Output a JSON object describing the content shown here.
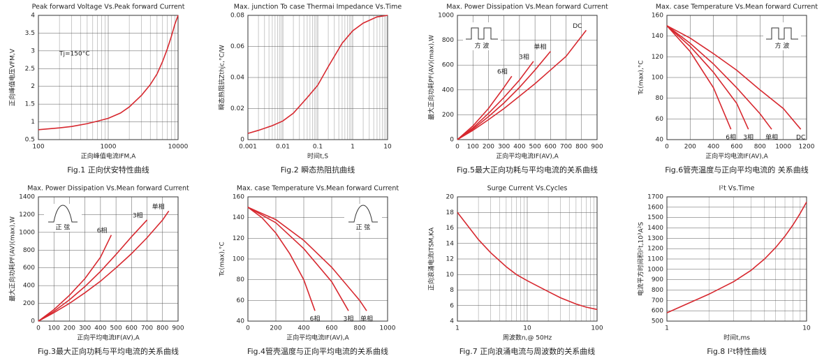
{
  "chart_data": [
    {
      "type": "line",
      "title": "Peak forward Voltage Vs.Peak forward Current",
      "caption": "Fig.1 正向伏安特性曲线",
      "xlabel": "正向峰值电流IFM,A",
      "ylabel": "正向峰值电压VFM,V",
      "annotation": "Tj=150°C",
      "xscale": "log",
      "xlim": [
        100,
        10000
      ],
      "xticks": [
        100,
        1000,
        10000
      ],
      "ylim": [
        0.5,
        4
      ],
      "yticks": [
        0.5,
        1,
        1.5,
        2,
        2.5,
        3,
        3.5,
        4
      ],
      "grid": true,
      "color": "#d7282f",
      "x": [
        100,
        200,
        300,
        500,
        700,
        1000,
        1500,
        2000,
        3000,
        4000,
        5000,
        6000,
        7000,
        8000,
        9000,
        10000
      ],
      "values": [
        0.78,
        0.83,
        0.87,
        0.95,
        1.02,
        1.1,
        1.25,
        1.42,
        1.75,
        2.05,
        2.35,
        2.7,
        3.05,
        3.4,
        3.75,
        4.0
      ]
    },
    {
      "type": "line",
      "title": "Max. junction To case Thermai Impedance Vs.Time",
      "caption": "Fig.2  瞬态热阻抗曲线",
      "xlabel": "时间t,S",
      "ylabel": "瞬态热阻抗Zthjc,°C/W",
      "xscale": "log",
      "xlim": [
        0.001,
        10
      ],
      "xticks": [
        0.001,
        0.01,
        0.1,
        1,
        10
      ],
      "ylim": [
        0,
        0.08
      ],
      "yticks": [
        0,
        0.02,
        0.04,
        0.06,
        0.08
      ],
      "grid": true,
      "color": "#d7282f",
      "x": [
        0.001,
        0.002,
        0.005,
        0.01,
        0.02,
        0.05,
        0.1,
        0.2,
        0.5,
        1,
        2,
        5,
        10
      ],
      "values": [
        0.004,
        0.006,
        0.009,
        0.012,
        0.017,
        0.027,
        0.035,
        0.047,
        0.062,
        0.07,
        0.075,
        0.079,
        0.08
      ]
    },
    {
      "type": "line",
      "title": "Max. Power Dissipation Vs.Mean forward Current",
      "caption": "Fig.5最大正向功耗与平均电流的关系曲线",
      "xlabel": "正向平均电流IF(AV),A",
      "ylabel": "最大正向功耗PF(AV)(max),W",
      "inset": {
        "label": "方  波",
        "shape": "square",
        "corner": "top-left"
      },
      "xscale": "linear",
      "xlim": [
        0,
        900
      ],
      "xticks": [
        0,
        100,
        200,
        300,
        400,
        500,
        600,
        700,
        800,
        900
      ],
      "ylim": [
        0,
        1000
      ],
      "yticks": [
        0,
        200,
        400,
        600,
        800,
        1000
      ],
      "grid": true,
      "series": [
        {
          "name": "6相",
          "color": "#d7282f",
          "x": [
            0,
            100,
            200,
            300,
            350
          ],
          "values": [
            0,
            110,
            250,
            420,
            510
          ]
        },
        {
          "name": "3相",
          "color": "#d7282f",
          "x": [
            0,
            100,
            200,
            300,
            400,
            490
          ],
          "values": [
            0,
            95,
            210,
            340,
            480,
            630
          ]
        },
        {
          "name": "单相",
          "color": "#d7282f",
          "x": [
            0,
            100,
            200,
            300,
            400,
            500,
            600
          ],
          "values": [
            0,
            85,
            185,
            295,
            420,
            560,
            710
          ]
        },
        {
          "name": "DC",
          "color": "#d7282f",
          "x": [
            0,
            100,
            200,
            300,
            400,
            500,
            600,
            700,
            830
          ],
          "values": [
            0,
            75,
            160,
            250,
            350,
            450,
            560,
            670,
            880
          ]
        }
      ]
    },
    {
      "type": "line",
      "title": "Max. case Temperature Vs.Mean forward Current",
      "caption": "Fig.6管壳温度与正向平均电流的 关系曲线",
      "xlabel": "正向平均电流IF(AV),A",
      "ylabel": "Tc(max),°C",
      "inset": {
        "label": "方  波",
        "shape": "square",
        "corner": "top-right"
      },
      "xscale": "linear",
      "xlim": [
        0,
        1200
      ],
      "xticks": [
        0,
        200,
        400,
        600,
        800,
        1000,
        1200
      ],
      "ylim": [
        40,
        160
      ],
      "yticks": [
        40,
        60,
        80,
        100,
        120,
        140,
        160
      ],
      "grid": true,
      "series": [
        {
          "name": "6相",
          "color": "#d7282f",
          "x": [
            0,
            200,
            400,
            550
          ],
          "values": [
            150,
            125,
            90,
            50
          ]
        },
        {
          "name": "3相",
          "color": "#d7282f",
          "x": [
            0,
            200,
            400,
            600,
            700
          ],
          "values": [
            150,
            130,
            105,
            75,
            50
          ]
        },
        {
          "name": "单相",
          "color": "#d7282f",
          "x": [
            0,
            200,
            400,
            600,
            800,
            900
          ],
          "values": [
            150,
            133,
            113,
            90,
            65,
            50
          ]
        },
        {
          "name": "DC",
          "color": "#d7282f",
          "x": [
            0,
            200,
            400,
            600,
            800,
            1000,
            1150
          ],
          "values": [
            150,
            138,
            123,
            107,
            88,
            70,
            50
          ]
        }
      ]
    },
    {
      "type": "line",
      "title": "Max. Power Dissipation Vs.Mean forward Current",
      "caption": "Fig.3最大正向功耗与平均电流的关系曲线",
      "xlabel": "正向平均电流IF(AV),A",
      "ylabel": "最大正向功耗PF(AV)(max),W",
      "inset": {
        "label": "正  弦",
        "shape": "sine",
        "corner": "top-left"
      },
      "xscale": "linear",
      "xlim": [
        0,
        900
      ],
      "xticks": [
        0,
        100,
        200,
        300,
        400,
        500,
        600,
        700,
        800,
        900
      ],
      "ylim": [
        0,
        1400
      ],
      "yticks": [
        0,
        200,
        400,
        600,
        800,
        1000,
        1200,
        1400
      ],
      "grid": true,
      "series": [
        {
          "name": "6相",
          "color": "#d7282f",
          "x": [
            0,
            100,
            200,
            300,
            400,
            470
          ],
          "values": [
            0,
            130,
            290,
            480,
            720,
            970
          ]
        },
        {
          "name": "3相",
          "color": "#d7282f",
          "x": [
            0,
            100,
            200,
            300,
            400,
            500,
            600,
            700
          ],
          "values": [
            0,
            110,
            240,
            390,
            560,
            750,
            950,
            1140
          ]
        },
        {
          "name": "单相",
          "color": "#d7282f",
          "x": [
            0,
            100,
            200,
            300,
            400,
            500,
            600,
            700,
            800,
            840
          ],
          "values": [
            0,
            95,
            200,
            320,
            450,
            600,
            760,
            940,
            1140,
            1240
          ]
        }
      ]
    },
    {
      "type": "line",
      "title": "Max. case Temperature Vs.Mean forward Current",
      "caption": "Fig.4管壳温度与正向平均电流的关系曲线",
      "xlabel": "正向平均电流IF(AV),A",
      "ylabel": "Tc(max),°C",
      "inset": {
        "label": "正  弦",
        "shape": "sine",
        "corner": "top-right"
      },
      "xscale": "linear",
      "xlim": [
        0,
        1000
      ],
      "xticks": [
        0,
        200,
        400,
        600,
        800,
        1000
      ],
      "ylim": [
        40,
        160
      ],
      "yticks": [
        40,
        60,
        80,
        100,
        120,
        140,
        160
      ],
      "grid": true,
      "series": [
        {
          "name": "6相",
          "color": "#d7282f",
          "x": [
            0,
            100,
            200,
            300,
            400,
            480
          ],
          "values": [
            150,
            140,
            125,
            105,
            80,
            50
          ]
        },
        {
          "name": "3相",
          "color": "#d7282f",
          "x": [
            0,
            200,
            400,
            600,
            720
          ],
          "values": [
            150,
            135,
            110,
            78,
            50
          ]
        },
        {
          "name": "单相",
          "color": "#d7282f",
          "x": [
            0,
            200,
            400,
            600,
            800,
            850
          ],
          "values": [
            150,
            138,
            118,
            92,
            60,
            50
          ]
        }
      ]
    },
    {
      "type": "line",
      "title": "Surge Current Vs.Cycles",
      "caption": "Fig.7 正向浪涌电流与周波数的关系曲线",
      "xlabel": "周波数n,@ 50Hz",
      "ylabel": "正向浪涌电流ITSM,KA",
      "xscale": "log",
      "xlim": [
        1,
        100
      ],
      "xticks": [
        1,
        10,
        100
      ],
      "ylim": [
        4,
        20
      ],
      "yticks": [
        4,
        6,
        8,
        10,
        12,
        14,
        16,
        18,
        20
      ],
      "grid": true,
      "color": "#d7282f",
      "x": [
        1,
        2,
        3,
        5,
        7,
        10,
        20,
        30,
        50,
        70,
        100
      ],
      "values": [
        18,
        14.5,
        12.8,
        11,
        10,
        9.2,
        7.8,
        7,
        6.2,
        5.8,
        5.5
      ]
    },
    {
      "type": "line",
      "title": "I²t Vs.Time",
      "caption": "Fig.8 I²t特性曲线",
      "xlabel": "时间t,ms",
      "ylabel": "电流平方时间积I²t,10³A²S",
      "xscale": "log",
      "xlim": [
        1,
        10
      ],
      "xticks": [
        1,
        10
      ],
      "ylim": [
        500,
        1700
      ],
      "yticks": [
        500,
        600,
        700,
        800,
        900,
        1000,
        1100,
        1200,
        1300,
        1400,
        1500,
        1600,
        1700
      ],
      "grid": true,
      "color": "#d7282f",
      "x": [
        1,
        2,
        3,
        4,
        5,
        6,
        7,
        8,
        9,
        10
      ],
      "values": [
        580,
        760,
        880,
        990,
        1100,
        1210,
        1320,
        1430,
        1540,
        1650
      ]
    }
  ]
}
